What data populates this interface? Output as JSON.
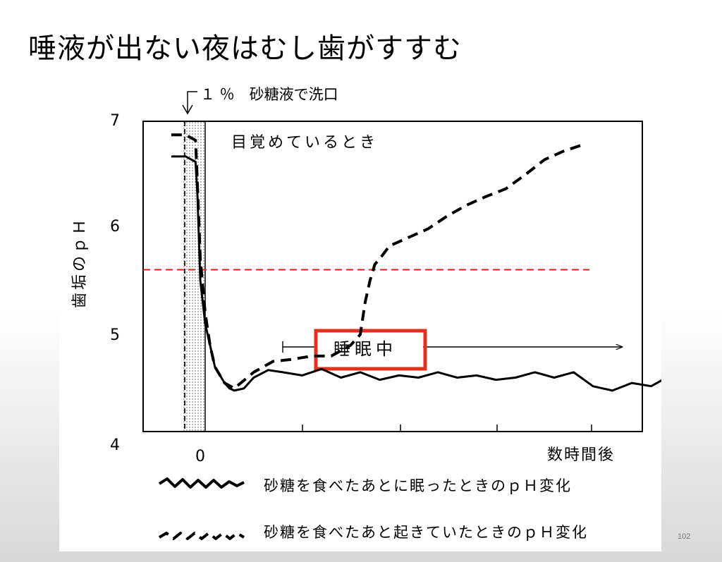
{
  "slide": {
    "title": "唾液が出ない夜はむし歯がすすむ",
    "page_number": "102"
  },
  "chart_data": {
    "type": "line",
    "ylabel": "歯垢のｐＨ",
    "xlabel": "数時間後",
    "ylim": [
      4,
      7
    ],
    "yticks": [
      "7",
      "6",
      "5",
      "4"
    ],
    "xticks": [
      "0"
    ],
    "rinse_annotation": "１ ％　砂糖液で洗口",
    "awake_annotation": "目覚めているとき",
    "sleep_label": "睡眠中",
    "critical_ph": 5.5,
    "critical_line_color": "#e8211b",
    "highlight_box_color": "#e0301e",
    "sleep_range": [
      0.8,
      4.3
    ],
    "series": [
      {
        "name": "砂糖を食べたあとに眠ったときのｐＨ変化",
        "style": "solid",
        "x": [
          -0.35,
          -0.2,
          -0.1,
          -0.08,
          -0.05,
          0.0,
          0.05,
          0.1,
          0.2,
          0.25,
          0.3,
          0.4,
          0.5,
          0.65,
          0.8,
          1.0,
          1.2,
          1.4,
          1.6,
          1.8,
          2.0,
          2.2,
          2.4,
          2.6,
          2.8,
          3.0,
          3.2,
          3.4,
          3.6,
          3.8,
          4.0,
          4.2,
          4.4,
          4.6,
          4.8,
          5.0,
          5.2,
          5.4,
          5.6,
          5.8,
          6.0,
          6.2,
          6.4,
          6.6,
          6.8,
          7.0,
          7.2,
          7.4
        ],
        "y": [
          6.55,
          6.55,
          6.5,
          6.2,
          5.4,
          5.0,
          4.8,
          4.6,
          4.45,
          4.4,
          4.38,
          4.4,
          4.5,
          4.57,
          4.55,
          4.52,
          4.58,
          4.5,
          4.55,
          4.48,
          4.52,
          4.5,
          4.55,
          4.5,
          4.52,
          4.48,
          4.5,
          4.55,
          4.5,
          4.55,
          4.42,
          4.38,
          4.45,
          4.42,
          4.52,
          4.52,
          4.5,
          4.48,
          4.55,
          4.45,
          4.52,
          4.48,
          4.55,
          4.45,
          4.5,
          4.45,
          4.42,
          4.52
        ]
      },
      {
        "name": "砂糖を食べたあと起きていたときのｐＨ変化",
        "style": "dashed",
        "x": [
          -0.35,
          -0.2,
          -0.1,
          -0.08,
          -0.05,
          0.0,
          0.05,
          0.1,
          0.2,
          0.3,
          0.5,
          0.7,
          0.9,
          1.1,
          1.3,
          1.5,
          1.6,
          1.65,
          1.7,
          1.75,
          1.8,
          1.9,
          2.1,
          2.3,
          2.5,
          2.7,
          2.9,
          3.1,
          3.3,
          3.5,
          3.7,
          3.9
        ],
        "y": [
          6.75,
          6.75,
          6.7,
          6.3,
          5.6,
          5.1,
          4.8,
          4.6,
          4.45,
          4.4,
          4.55,
          4.65,
          4.67,
          4.7,
          4.7,
          4.8,
          4.9,
          5.2,
          5.4,
          5.55,
          5.6,
          5.72,
          5.8,
          5.88,
          6.0,
          6.1,
          6.18,
          6.25,
          6.38,
          6.52,
          6.6,
          6.66
        ]
      }
    ]
  }
}
